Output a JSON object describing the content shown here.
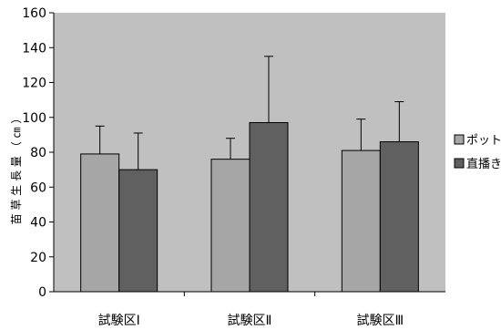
{
  "chart_data": {
    "type": "bar",
    "title": "",
    "xlabel": "",
    "ylabel": "苗 草 生 長 量 （ ㎝ ）",
    "ylim": [
      0,
      160
    ],
    "yticks": [
      0,
      20,
      40,
      60,
      80,
      100,
      120,
      140,
      160
    ],
    "categories": [
      "試験区Ⅰ",
      "試験区Ⅱ",
      "試験区Ⅲ"
    ],
    "series": [
      {
        "name": "ポット",
        "color": "#a6a6a6",
        "values": [
          79,
          76,
          81
        ],
        "errors": [
          16,
          12,
          18
        ]
      },
      {
        "name": "直播き",
        "color": "#606060",
        "values": [
          70,
          97,
          86
        ],
        "errors": [
          21,
          38,
          23
        ]
      }
    ],
    "plot_background": "#c0c0c0",
    "grid": false,
    "error_bars": true,
    "legend_position": "right"
  }
}
